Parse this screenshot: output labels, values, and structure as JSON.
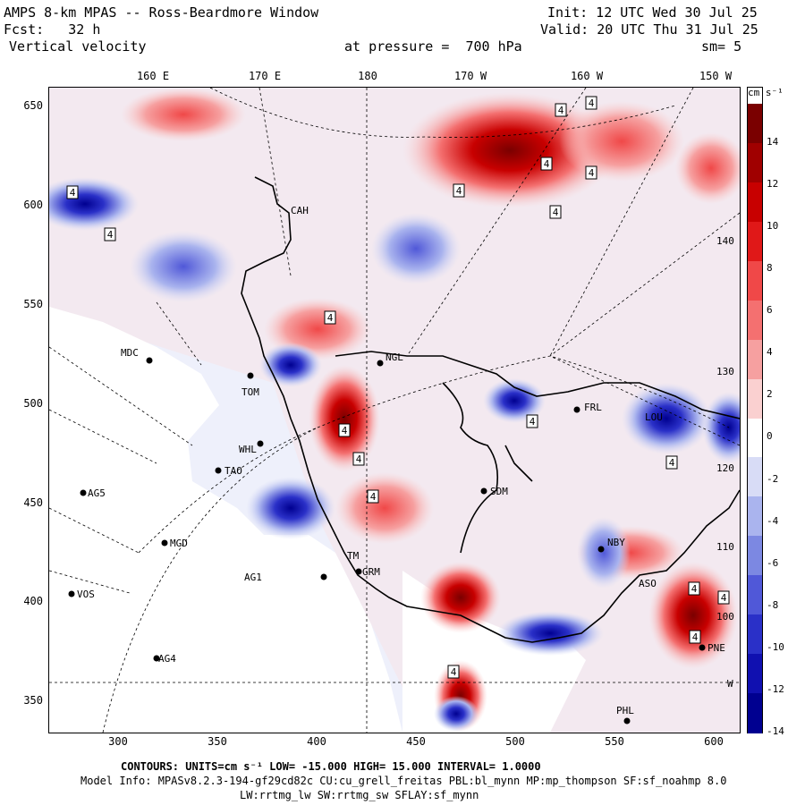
{
  "header": {
    "line1_left": "AMPS 8-km MPAS -- Ross-Beardmore Window",
    "line1_right": "Init: 12 UTC Wed 30 Jul 25",
    "line2_left": "Fcst:   32 h",
    "line2_right": "Valid: 20 UTC Thu 31 Jul 25",
    "line3_left": "Vertical velocity",
    "line3_mid": "at pressure =  700 hPa",
    "line3_right": "sm= 5"
  },
  "top_longitudes": [
    "160 E",
    "170 E",
    "180",
    "170 W",
    "160 W",
    "150 W"
  ],
  "bottom_axis_ticks": [
    "300",
    "350",
    "400",
    "450",
    "500",
    "550",
    "600"
  ],
  "left_axis_ticks": [
    "650",
    "600",
    "550",
    "500",
    "450",
    "400",
    "350"
  ],
  "right_longitudes": [
    "140 W",
    "130 W",
    "120 W",
    "110 W",
    "100 W",
    "W"
  ],
  "colorbar": {
    "units_label": "cm s⁻¹",
    "tick_labels": [
      "14",
      "12",
      "10",
      "8",
      "6",
      "4",
      "2",
      "0",
      "-2",
      "-4",
      "-6",
      "-8",
      "-10",
      "-12",
      "-14"
    ],
    "colors": [
      "#7a0000",
      "#a00000",
      "#c80000",
      "#e01818",
      "#f04848",
      "#f47070",
      "#f6a0a0",
      "#fad0d0",
      "#ffffff",
      "#d8dcf6",
      "#aab4ee",
      "#7c88e2",
      "#5058d8",
      "#2a30c8",
      "#1010b0",
      "#000090"
    ]
  },
  "stations": [
    {
      "code": "MDC"
    },
    {
      "code": "TOM"
    },
    {
      "code": "WHL"
    },
    {
      "code": "TAO"
    },
    {
      "code": "AG5"
    },
    {
      "code": "MGD"
    },
    {
      "code": "AG1"
    },
    {
      "code": "VOS"
    },
    {
      "code": "AG4"
    },
    {
      "code": "GRM"
    },
    {
      "code": "TM"
    },
    {
      "code": "SDM"
    },
    {
      "code": "NGL"
    },
    {
      "code": "CAH"
    },
    {
      "code": "FRL"
    },
    {
      "code": "LOU"
    },
    {
      "code": "NBY"
    },
    {
      "code": "ASO"
    },
    {
      "code": "PNE"
    },
    {
      "code": "PHL"
    }
  ],
  "contour_label_value": "4",
  "footer": {
    "contours": "CONTOURS:  UNITS=cm s⁻¹  LOW= -15.000     HIGH=  15.000     INTERVAL=   1.0000",
    "model_info": "Model Info: MPASv8.2.3-194-gf29cd82c CU:cu_grell_freitas PBL:bl_mynn MP:mp_thompson SF:sf_noahmp 8.0",
    "physics": "LW:rrtmg_lw SW:rrtmg_sw SFLAY:sf_mynn"
  }
}
